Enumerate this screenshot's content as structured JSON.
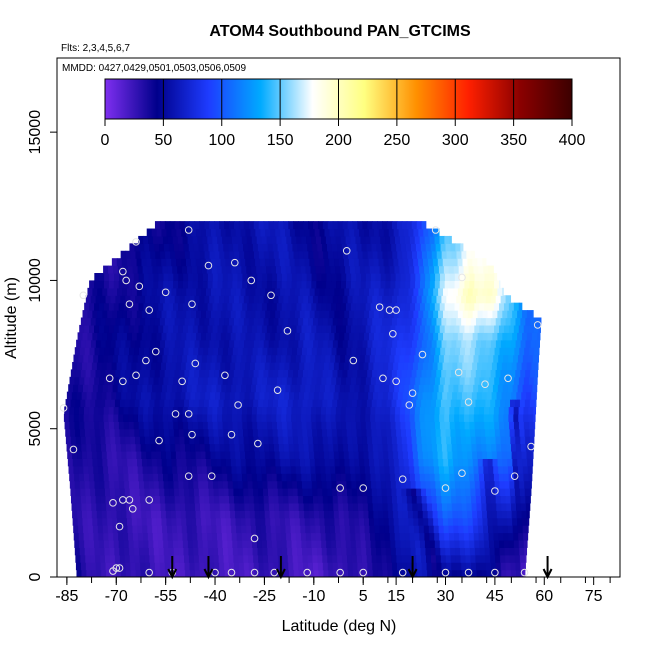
{
  "chart_data": {
    "type": "heatmap",
    "title": "ATOM4 Southbound PAN_GTCIMS",
    "flights_label": "Flts: 2,3,4,5,6,7",
    "dates_label": "MMDD: 0427,0429,0501,0503,0506,0509",
    "xlabel": "Latitude (deg N)",
    "ylabel": "Altitude (m)",
    "xlim": [
      -88,
      83
    ],
    "ylim": [
      0,
      17500
    ],
    "x_ticks": [
      -85,
      -70,
      -55,
      -40,
      -25,
      -10,
      5,
      15,
      30,
      45,
      60,
      75
    ],
    "y_ticks": [
      0,
      5000,
      10000,
      15000
    ],
    "y_tick_labels": [
      "0",
      "5000",
      "10000",
      "15000"
    ],
    "colorbar": {
      "ticks": [
        0,
        50,
        100,
        150,
        200,
        250,
        300,
        350,
        400
      ],
      "range": [
        0,
        400
      ],
      "colors": [
        "#7f2ff0",
        "#00008b",
        "#1e3cff",
        "#00aaff",
        "#ffffff",
        "#ffff80",
        "#ff9000",
        "#ff2000",
        "#8b0000",
        "#3c0000"
      ]
    },
    "profile_latitudes": [
      -53,
      -42,
      -20,
      20,
      61
    ],
    "field_stops": [
      {
        "lat": -86,
        "mix": [
          40,
          35,
          35,
          35,
          30,
          30,
          30
        ]
      },
      {
        "lat": -70,
        "mix": [
          25,
          25,
          30,
          45,
          45,
          40,
          35
        ]
      },
      {
        "lat": -55,
        "mix": [
          25,
          25,
          40,
          60,
          55,
          55,
          45
        ]
      },
      {
        "lat": -40,
        "mix": [
          20,
          25,
          45,
          65,
          60,
          60,
          55
        ]
      },
      {
        "lat": -25,
        "mix": [
          25,
          30,
          55,
          65,
          55,
          55,
          60
        ]
      },
      {
        "lat": -10,
        "mix": [
          20,
          30,
          55,
          70,
          65,
          60,
          55
        ]
      },
      {
        "lat": 5,
        "mix": [
          25,
          35,
          60,
          70,
          65,
          60,
          55
        ]
      },
      {
        "lat": 15,
        "mix": [
          45,
          55,
          70,
          80,
          75,
          70,
          60
        ]
      },
      {
        "lat": 22,
        "mix": [
          55,
          80,
          110,
          110,
          100,
          95,
          80
        ]
      },
      {
        "lat": 30,
        "mix": [
          55,
          100,
          135,
          150,
          150,
          170,
          150
        ]
      },
      {
        "lat": 38,
        "mix": [
          45,
          90,
          125,
          140,
          160,
          210,
          170
        ]
      },
      {
        "lat": 45,
        "mix": [
          35,
          80,
          110,
          130,
          150,
          190,
          160
        ]
      },
      {
        "lat": 50,
        "mix": [
          25,
          60,
          100,
          120,
          130,
          140,
          150
        ]
      },
      {
        "lat": 55,
        "mix": [
          20,
          40,
          70,
          90,
          100,
          110,
          120
        ]
      }
    ],
    "field_altitudes": [
      0,
      2000,
      4000,
      6000,
      8000,
      9500,
      11500
    ],
    "extent": {
      "left_lat": [
        [
          0,
          -82
        ],
        [
          3000,
          -84
        ],
        [
          5500,
          -86
        ],
        [
          8000,
          -82
        ],
        [
          10000,
          -78
        ],
        [
          11500,
          -62
        ],
        [
          12000,
          -57
        ]
      ],
      "right_lat": [
        [
          0,
          54
        ],
        [
          3000,
          56
        ],
        [
          5000,
          57
        ],
        [
          7000,
          58
        ],
        [
          8700,
          59
        ],
        [
          9500,
          48
        ],
        [
          10500,
          44
        ],
        [
          11500,
          30
        ],
        [
          12000,
          22
        ]
      ]
    },
    "stripes": [
      {
        "name": "dark band",
        "lat0": 12,
        "alt0": 0,
        "lat1": -10,
        "alt1": 12000,
        "width": 9,
        "value": 45
      },
      {
        "name": "dark band",
        "lat0": 28,
        "alt0": 0,
        "lat1": 20,
        "alt1": 3000,
        "width": 4,
        "value": 40
      },
      {
        "name": "dark band",
        "lat0": 45,
        "alt0": 0,
        "lat1": 43,
        "alt1": 4000,
        "width": 3,
        "value": 45
      },
      {
        "name": "dark band",
        "lat0": 52,
        "alt0": 0,
        "lat1": 51,
        "alt1": 6000,
        "width": 2,
        "value": 40
      }
    ],
    "samples": [
      {
        "lat": -80,
        "alt": 9500
      },
      {
        "lat": -68,
        "alt": 10300
      },
      {
        "lat": -67,
        "alt": 10000
      },
      {
        "lat": -64,
        "alt": 11300
      },
      {
        "lat": -63,
        "alt": 9800
      },
      {
        "lat": -66,
        "alt": 9200
      },
      {
        "lat": -60,
        "alt": 9000
      },
      {
        "lat": -55,
        "alt": 9600
      },
      {
        "lat": -48,
        "alt": 11700
      },
      {
        "lat": -47,
        "alt": 9200
      },
      {
        "lat": -42,
        "alt": 10500
      },
      {
        "lat": -34,
        "alt": 10600
      },
      {
        "lat": -29,
        "alt": 10000
      },
      {
        "lat": -23,
        "alt": 9500
      },
      {
        "lat": -18,
        "alt": 8300
      },
      {
        "lat": 0,
        "alt": 11000
      },
      {
        "lat": 10,
        "alt": 9100
      },
      {
        "lat": 13,
        "alt": 9000
      },
      {
        "lat": 15,
        "alt": 9000
      },
      {
        "lat": 14,
        "alt": 8200
      },
      {
        "lat": 27,
        "alt": 11700
      },
      {
        "lat": 35,
        "alt": 10100
      },
      {
        "lat": 58,
        "alt": 8500
      },
      {
        "lat": -58,
        "alt": 7600
      },
      {
        "lat": -61,
        "alt": 7300
      },
      {
        "lat": -72,
        "alt": 6700
      },
      {
        "lat": -68,
        "alt": 6600
      },
      {
        "lat": -64,
        "alt": 6800
      },
      {
        "lat": -50,
        "alt": 6600
      },
      {
        "lat": -46,
        "alt": 7200
      },
      {
        "lat": -37,
        "alt": 6800
      },
      {
        "lat": -21,
        "alt": 6300
      },
      {
        "lat": -33,
        "alt": 5800
      },
      {
        "lat": -52,
        "alt": 5500
      },
      {
        "lat": -48,
        "alt": 5500
      },
      {
        "lat": -47,
        "alt": 4800
      },
      {
        "lat": -35,
        "alt": 4800
      },
      {
        "lat": -27,
        "alt": 4500
      },
      {
        "lat": -57,
        "alt": 4600
      },
      {
        "lat": -86,
        "alt": 5700
      },
      {
        "lat": -83,
        "alt": 4300
      },
      {
        "lat": 2,
        "alt": 7300
      },
      {
        "lat": 11,
        "alt": 6700
      },
      {
        "lat": 15,
        "alt": 6600
      },
      {
        "lat": 20,
        "alt": 6200
      },
      {
        "lat": 23,
        "alt": 7500
      },
      {
        "lat": 34,
        "alt": 6900
      },
      {
        "lat": 37,
        "alt": 5900
      },
      {
        "lat": 42,
        "alt": 6500
      },
      {
        "lat": 49,
        "alt": 6700
      },
      {
        "lat": 56,
        "alt": 4400
      },
      {
        "lat": 19,
        "alt": 5800
      },
      {
        "lat": -48,
        "alt": 3400
      },
      {
        "lat": -41,
        "alt": 3400
      },
      {
        "lat": -71,
        "alt": 2500
      },
      {
        "lat": -68,
        "alt": 2600
      },
      {
        "lat": -66,
        "alt": 2600
      },
      {
        "lat": -65,
        "alt": 2300
      },
      {
        "lat": -60,
        "alt": 2600
      },
      {
        "lat": -69,
        "alt": 1700
      },
      {
        "lat": -28,
        "alt": 1300
      },
      {
        "lat": -2,
        "alt": 3000
      },
      {
        "lat": 5,
        "alt": 3000
      },
      {
        "lat": 17,
        "alt": 3300
      },
      {
        "lat": 30,
        "alt": 3000
      },
      {
        "lat": 35,
        "alt": 3500
      },
      {
        "lat": 45,
        "alt": 2900
      },
      {
        "lat": 51,
        "alt": 3400
      },
      {
        "lat": -69,
        "alt": 300
      },
      {
        "lat": -70,
        "alt": 300
      },
      {
        "lat": -71,
        "alt": 200
      },
      {
        "lat": -60,
        "alt": 150
      },
      {
        "lat": -53,
        "alt": 150
      },
      {
        "lat": -40,
        "alt": 150
      },
      {
        "lat": -35,
        "alt": 150
      },
      {
        "lat": -28,
        "alt": 150
      },
      {
        "lat": -22,
        "alt": 150
      },
      {
        "lat": -12,
        "alt": 150
      },
      {
        "lat": -2,
        "alt": 150
      },
      {
        "lat": 5,
        "alt": 150
      },
      {
        "lat": 17,
        "alt": 150
      },
      {
        "lat": 30,
        "alt": 150
      },
      {
        "lat": 37,
        "alt": 150
      },
      {
        "lat": 45,
        "alt": 150
      },
      {
        "lat": 54,
        "alt": 150
      }
    ]
  }
}
